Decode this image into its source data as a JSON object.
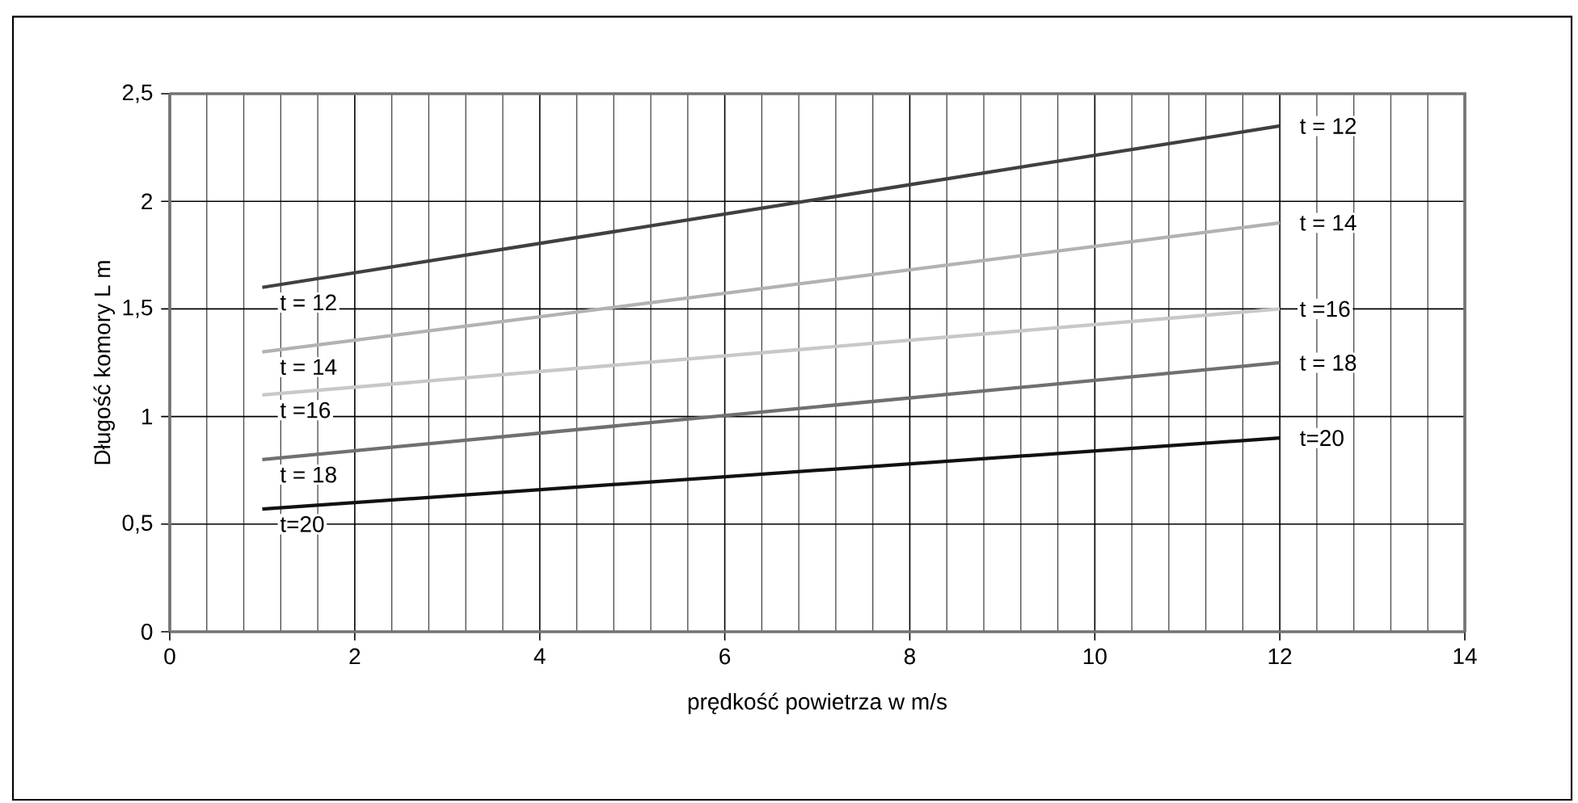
{
  "chart_data": {
    "type": "line",
    "xlabel": "prędkość powietrza w m/s",
    "ylabel": "Długość komory L m",
    "xlim": [
      0,
      14
    ],
    "ylim": [
      0,
      2.5
    ],
    "xticks": [
      0,
      2,
      4,
      6,
      8,
      10,
      12,
      14
    ],
    "x": [
      1,
      12
    ],
    "yticks": [
      0,
      {
        "value": 0.5,
        "label": "0,5"
      },
      1,
      {
        "value": 1.5,
        "label": "1,5"
      },
      2,
      {
        "value": 2.5,
        "label": "2,5"
      }
    ],
    "grid": true,
    "series": [
      {
        "name": "t = 12",
        "color": "#404040",
        "values": [
          1.6,
          2.35
        ]
      },
      {
        "name": "t = 14",
        "color": "#b2b2b2",
        "values": [
          1.3,
          1.9
        ]
      },
      {
        "name": "t =16",
        "color": "#c8c8c8",
        "values": [
          1.1,
          1.5
        ]
      },
      {
        "name": "t = 18",
        "color": "#707070",
        "values": [
          0.8,
          1.25
        ]
      },
      {
        "name": "t=20",
        "color": "#111111",
        "values": [
          0.57,
          0.9
        ]
      }
    ],
    "annotations": [
      "t = 12",
      "t = 14",
      "t =16",
      "t = 18",
      "t=20"
    ]
  }
}
